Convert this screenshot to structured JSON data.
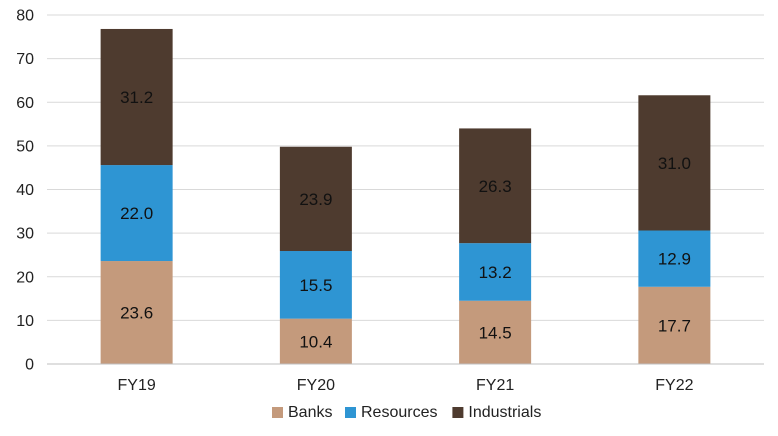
{
  "chart_data": {
    "type": "bar",
    "stacked": true,
    "title": "",
    "xlabel": "",
    "ylabel": "",
    "categories": [
      "FY19",
      "FY20",
      "FY21",
      "FY22"
    ],
    "series": [
      {
        "name": "Banks",
        "values": [
          23.6,
          10.4,
          14.5,
          17.7
        ],
        "color": "#C49A7C"
      },
      {
        "name": "Resources",
        "values": [
          22.0,
          15.5,
          13.2,
          12.9
        ],
        "color": "#2E95D3"
      },
      {
        "name": "Industrials",
        "values": [
          31.2,
          23.9,
          26.3,
          31.0
        ],
        "color": "#4E3B2F"
      }
    ],
    "ylim": [
      0,
      80
    ],
    "yticks": [
      0,
      10,
      20,
      30,
      40,
      50,
      60,
      70,
      80
    ],
    "grid": true,
    "legend_position": "bottom",
    "label_format": "one-decimal"
  }
}
